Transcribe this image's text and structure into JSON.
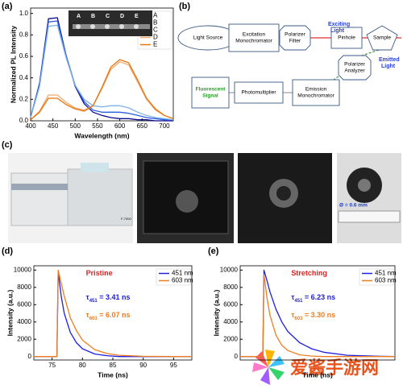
{
  "panel_labels": [
    "(a)",
    "(b)",
    "(c)",
    "(d)",
    "(e)"
  ],
  "chart_data": [
    {
      "type": "line",
      "xlabel": "Wavelength (nm)",
      "ylabel": "Normalized PL Intensity",
      "x": [
        400,
        420,
        440,
        460,
        480,
        500,
        520,
        540,
        560,
        580,
        600,
        620,
        640,
        660,
        680,
        700,
        720
      ],
      "xlim": [
        400,
        720
      ],
      "xticks": [
        400,
        450,
        500,
        550,
        600,
        650,
        700
      ],
      "ylim": [
        0,
        1.05
      ],
      "yticks": [
        {
          "value": 0,
          "label": "0.0"
        },
        0.2,
        0.4,
        0.6,
        0.8,
        {
          "value": 1,
          "label": "1.0"
        }
      ],
      "legend": "upper right",
      "inset_labels": [
        "A",
        "B",
        "C",
        "D",
        "E"
      ],
      "series": [
        {
          "name": "A",
          "color": "#0a0a8c",
          "values": [
            0.03,
            0.35,
            0.95,
            0.96,
            0.6,
            0.32,
            0.16,
            0.08,
            0.05,
            0.03,
            0.02,
            0.02,
            0.01,
            0.01,
            0,
            0,
            0
          ]
        },
        {
          "name": "B",
          "color": "#2a5ee0",
          "values": [
            0.03,
            0.34,
            0.92,
            0.93,
            0.6,
            0.33,
            0.18,
            0.1,
            0.08,
            0.08,
            0.08,
            0.07,
            0.05,
            0.03,
            0.02,
            0.01,
            0.01
          ]
        },
        {
          "name": "C",
          "color": "#7fb2e5",
          "values": [
            0.03,
            0.32,
            0.88,
            0.89,
            0.58,
            0.33,
            0.2,
            0.14,
            0.13,
            0.14,
            0.14,
            0.12,
            0.08,
            0.05,
            0.03,
            0.02,
            0.01
          ]
        },
        {
          "name": "D",
          "color": "#f2a86a",
          "values": [
            0.01,
            0.09,
            0.24,
            0.24,
            0.17,
            0.12,
            0.1,
            0.14,
            0.3,
            0.48,
            0.55,
            0.52,
            0.36,
            0.2,
            0.1,
            0.05,
            0.02
          ]
        },
        {
          "name": "E",
          "color": "#e8720c",
          "values": [
            0.01,
            0.08,
            0.21,
            0.21,
            0.15,
            0.11,
            0.09,
            0.14,
            0.31,
            0.5,
            0.57,
            0.54,
            0.38,
            0.21,
            0.11,
            0.05,
            0.02
          ]
        }
      ]
    },
    {
      "type": "line",
      "xlabel": "Time (ns)",
      "ylabel": "Intensity (a.u.)",
      "x": [
        72,
        75.8,
        76,
        76.5,
        77,
        78,
        79,
        80,
        82,
        84,
        86,
        90,
        95,
        98
      ],
      "xlim": [
        72,
        98
      ],
      "xticks": [
        75,
        80,
        85,
        90,
        95
      ],
      "ylim": [
        -400,
        10500
      ],
      "yticks": [
        0,
        2000,
        4000,
        6000,
        8000,
        10000
      ],
      "legend": "upper right",
      "annotations": [
        {
          "color": "#e02020",
          "parts": [
            "Pristine"
          ]
        },
        {
          "color": "#2020d0",
          "parts": [
            "τ",
            "451",
            " = 3.41 ns"
          ]
        },
        {
          "color": "#ee7d1f",
          "parts": [
            "τ",
            "603",
            " = 6.07 ns"
          ]
        }
      ],
      "series": [
        {
          "name": "451 nm",
          "color": "#1f1fe0",
          "values": [
            0,
            0,
            9800,
            7000,
            5000,
            2800,
            1600,
            900,
            300,
            100,
            0,
            0,
            0,
            0
          ]
        },
        {
          "name": "603 nm",
          "color": "#ee7d1f",
          "values": [
            0,
            0,
            10000,
            8500,
            7000,
            4500,
            3000,
            1900,
            800,
            350,
            150,
            30,
            0,
            0
          ]
        }
      ]
    },
    {
      "type": "line",
      "xlabel": "Time (ns)",
      "ylabel": "Intensity (a.u.)",
      "x": [
        72,
        75.8,
        76,
        76.5,
        77,
        78,
        79,
        80,
        82,
        84,
        86,
        90,
        95,
        98
      ],
      "xlim": [
        72,
        98
      ],
      "ylim": [
        -400,
        10500
      ],
      "yticks": [
        0,
        2000,
        4000,
        6000,
        8000,
        10000
      ],
      "legend": "upper right",
      "annotations": [
        {
          "color": "#e02020",
          "parts": [
            "Stretching"
          ]
        },
        {
          "color": "#2020d0",
          "parts": [
            "τ",
            "451",
            " = 6.23 ns"
          ]
        },
        {
          "color": "#ee7d1f",
          "parts": [
            "τ",
            "603",
            " = 3.30 ns"
          ]
        }
      ],
      "series": [
        {
          "name": "451 nm",
          "color": "#1f1fe0",
          "values": [
            0,
            0,
            10000,
            8800,
            7500,
            5500,
            4000,
            2900,
            1600,
            900,
            500,
            150,
            40,
            0
          ]
        },
        {
          "name": "603 nm",
          "color": "#ee7d1f",
          "values": [
            0,
            0,
            9500,
            6800,
            4800,
            2500,
            1300,
            700,
            200,
            60,
            0,
            0,
            0,
            0
          ]
        }
      ]
    }
  ],
  "diagram": {
    "nodes": [
      {
        "lines": [
          "Light Source"
        ]
      },
      {
        "lines": [
          "Excitation",
          "Monochromator"
        ]
      },
      {
        "lines": [
          "Polarizer",
          "Filter"
        ]
      },
      {
        "lines": [
          "Pinhole"
        ]
      },
      {
        "lines": [
          "Sample"
        ]
      },
      {
        "lines": [
          "Polarizer",
          "Analyzer"
        ]
      },
      {
        "lines": [
          "Fluorescent",
          "Signal"
        ]
      },
      {
        "lines": [
          "Photomultiplier"
        ]
      },
      {
        "lines": [
          "Emission",
          "Monochromator"
        ]
      }
    ],
    "beam_labels": [
      [
        "Exciting",
        "Light"
      ],
      [
        "Emitted",
        "Light"
      ]
    ]
  },
  "photos": {
    "instrument_label": "F-7000",
    "scale_label": "Ø = 0.6 mm"
  },
  "watermark": "爱酱手游网"
}
